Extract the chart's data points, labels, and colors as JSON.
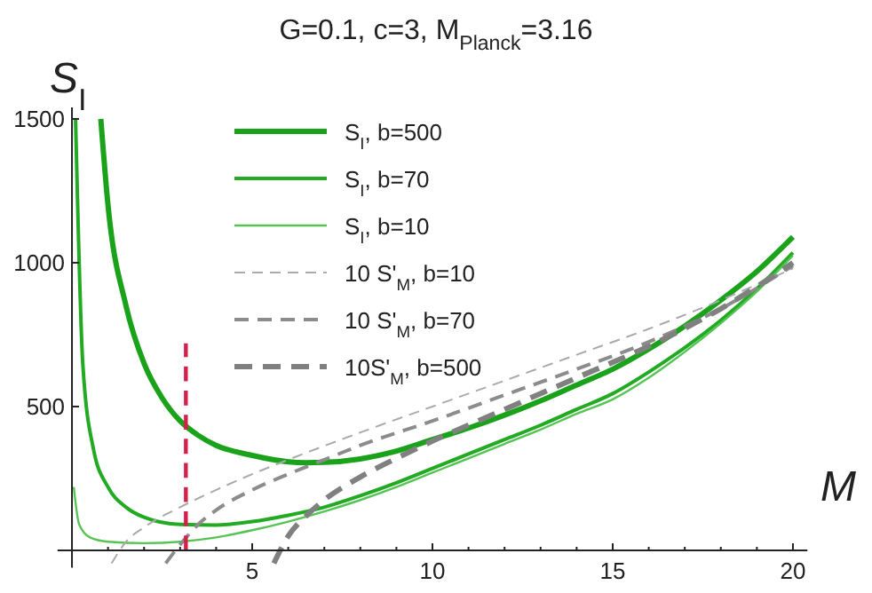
{
  "chart_data": {
    "type": "line",
    "title": "G=0.1, c=3, M$_{Planck}$=3.16",
    "xlabel": "M",
    "ylabel": "S$_{I}$",
    "xlim": [
      -0.4,
      20.4
    ],
    "ylim": [
      -60,
      1540
    ],
    "xticks": [
      {
        "value": 1,
        "label": null
      },
      {
        "value": 2,
        "label": null
      },
      {
        "value": 3,
        "label": null
      },
      {
        "value": 4,
        "label": null
      },
      5,
      {
        "value": 6,
        "label": null
      },
      {
        "value": 7,
        "label": null
      },
      {
        "value": 8,
        "label": null
      },
      {
        "value": 9,
        "label": null
      },
      10,
      {
        "value": 11,
        "label": null
      },
      {
        "value": 12,
        "label": null
      },
      {
        "value": 13,
        "label": null
      },
      {
        "value": 14,
        "label": null
      },
      15,
      {
        "value": 16,
        "label": null
      },
      {
        "value": 17,
        "label": null
      },
      {
        "value": 18,
        "label": null
      },
      {
        "value": 19,
        "label": null
      },
      20
    ],
    "yticks": [
      500,
      1000,
      1500
    ],
    "grid": false,
    "legend": "top",
    "marker": "none",
    "series": [
      {
        "name": "S$_{I}$, b=500",
        "color": "#1aa31a",
        "line_style": "solid",
        "x": [
          0.8,
          1,
          1.5,
          2,
          2.5,
          3,
          3.5,
          4,
          5,
          6,
          6.5,
          7,
          8,
          9,
          10,
          11,
          12,
          13,
          14,
          15,
          16,
          17,
          18,
          19,
          20
        ],
        "values": [
          1500,
          1200,
          850,
          650,
          530,
          450,
          400,
          365,
          330,
          308,
          305,
          306,
          318,
          345,
          385,
          425,
          470,
          520,
          575,
          630,
          700,
          780,
          870,
          970,
          1090
        ]
      },
      {
        "name": "S$_{I}$, b=70",
        "color": "#22aa22",
        "line_style": "solid",
        "x": [
          0.1,
          0.3,
          0.6,
          1,
          1.5,
          2,
          3,
          4,
          5,
          6,
          7,
          8,
          9,
          10,
          11,
          12,
          13,
          14,
          15,
          16,
          17,
          18,
          19,
          20
        ],
        "values": [
          1500,
          650,
          350,
          220,
          150,
          115,
          90,
          88,
          100,
          122,
          150,
          190,
          235,
          285,
          335,
          385,
          435,
          490,
          545,
          620,
          705,
          800,
          910,
          1035
        ]
      },
      {
        "name": "S$_{I}$, b=10",
        "color": "#55c455",
        "line_style": "solid",
        "x": [
          0.05,
          0.2,
          0.5,
          1,
          2,
          3,
          4,
          5,
          6,
          7,
          8,
          9,
          10,
          11,
          12,
          13,
          14,
          15,
          16,
          17,
          18,
          19,
          20
        ],
        "values": [
          220,
          90,
          45,
          30,
          25,
          30,
          45,
          70,
          100,
          135,
          175,
          220,
          270,
          320,
          370,
          420,
          475,
          525,
          600,
          690,
          790,
          900,
          1025
        ]
      },
      {
        "name": "10 S'$_{M}$, b=10",
        "color": "#aaaaaa",
        "line_style": "dashed",
        "x": [
          1.1,
          1.5,
          2,
          3,
          4,
          5,
          6,
          8,
          10,
          12,
          14,
          16,
          18,
          20
        ],
        "values": [
          -45,
          30,
          80,
          150,
          210,
          265,
          315,
          410,
          500,
          590,
          680,
          770,
          870,
          980
        ]
      },
      {
        "name": "10 S'$_{M}$, b=70",
        "color": "#8c8c8c",
        "line_style": "dashed",
        "x": [
          2.6,
          3,
          3.5,
          4,
          5,
          6,
          7,
          8,
          10,
          12,
          14,
          16,
          18,
          20
        ],
        "values": [
          -45,
          20,
          90,
          140,
          210,
          265,
          315,
          365,
          450,
          540,
          630,
          725,
          840,
          990
        ]
      },
      {
        "name": "10S'$_{M}$,  b=500",
        "color": "#808080",
        "line_style": "dashed",
        "x": [
          5.6,
          6,
          6.5,
          7,
          8,
          9,
          10,
          12,
          14,
          16,
          18,
          20
        ],
        "values": [
          -45,
          50,
          120,
          175,
          255,
          320,
          380,
          490,
          600,
          710,
          840,
          1000
        ]
      },
      {
        "color": "#d6204a",
        "line_style": "dashed",
        "x": [
          3.16,
          3.16
        ],
        "values": [
          0,
          720
        ]
      }
    ]
  }
}
